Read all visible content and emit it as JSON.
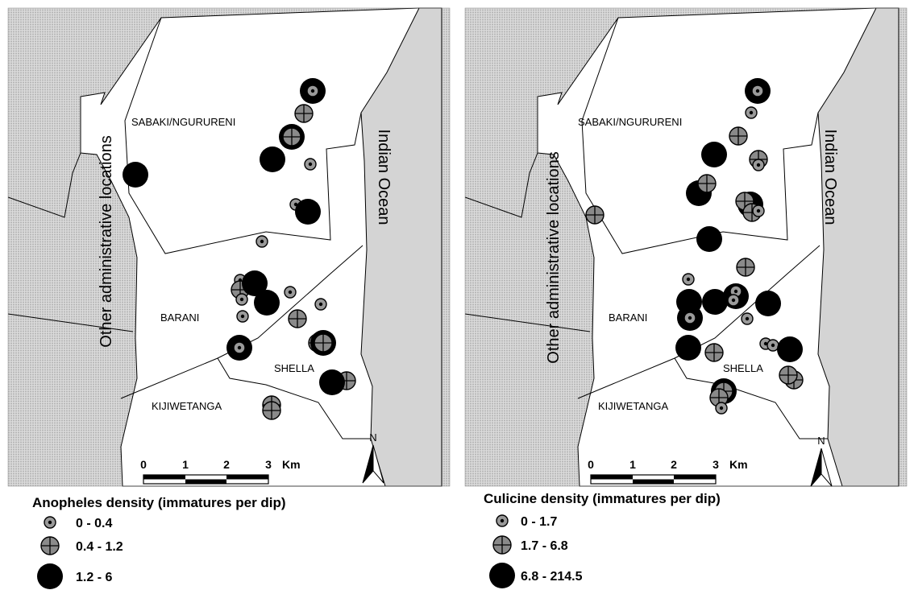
{
  "maps": [
    {
      "region_labels": {
        "sabaki": "SABAKI/NGURURENI",
        "barani": "BARANI",
        "shella": "SHELLA",
        "kijiwetanga": "KIJIWETANGA"
      },
      "other_locations_label": "Other administrative locations",
      "ocean_label": "Indian Ocean",
      "scale_bar": {
        "ticks": [
          "0",
          "1",
          "2",
          "3"
        ],
        "unit": "Km"
      },
      "north_label": "N",
      "legend": {
        "title": "Anopheles density (immatures per dip)",
        "classes": [
          {
            "label": "0 - 0.4",
            "symbol": "small-dotted-circle"
          },
          {
            "label": "0.4 - 1.2",
            "symbol": "medium-crossed-circle"
          },
          {
            "label": "1.2 - 6",
            "symbol": "large-black-circle"
          }
        ]
      },
      "colors": {
        "land_hatch": "#c9c9c9",
        "ocean": "#d4d4d4",
        "study_area": "#ffffff",
        "symbol_grey": "#8a8a8a",
        "symbol_black": "#000000"
      }
    },
    {
      "region_labels": {
        "sabaki": "SABAKI/NGURURENI",
        "barani": "BARANI",
        "shella": "SHELLA",
        "kijiwetanga": "KIJIWETANGA"
      },
      "other_locations_label": "Other administrative locations",
      "ocean_label": "Indian Ocean",
      "scale_bar": {
        "ticks": [
          "0",
          "1",
          "2",
          "3"
        ],
        "unit": "Km"
      },
      "north_label": "N",
      "legend": {
        "title": "Culicine density (immatures per dip)",
        "classes": [
          {
            "label": "0 - 1.7",
            "symbol": "small-dotted-circle"
          },
          {
            "label": "1.7 - 6.8",
            "symbol": "medium-crossed-circle"
          },
          {
            "label": "6.8 - 214.5",
            "symbol": "large-black-circle"
          }
        ]
      },
      "colors": {
        "land_hatch": "#c9c9c9",
        "ocean": "#d4d4d4",
        "study_area": "#ffffff",
        "symbol_grey": "#8a8a8a",
        "symbol_black": "#000000"
      }
    }
  ]
}
